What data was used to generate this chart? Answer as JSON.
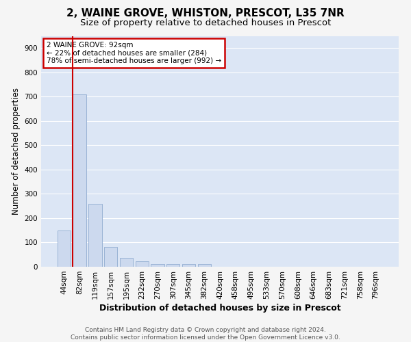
{
  "title": "2, WAINE GROVE, WHISTON, PRESCOT, L35 7NR",
  "subtitle": "Size of property relative to detached houses in Prescot",
  "xlabel": "Distribution of detached houses by size in Prescot",
  "ylabel": "Number of detached properties",
  "footer_line1": "Contains HM Land Registry data © Crown copyright and database right 2024.",
  "footer_line2": "Contains public sector information licensed under the Open Government Licence v3.0.",
  "bar_labels": [
    "44sqm",
    "82sqm",
    "119sqm",
    "157sqm",
    "195sqm",
    "232sqm",
    "270sqm",
    "307sqm",
    "345sqm",
    "382sqm",
    "420sqm",
    "458sqm",
    "495sqm",
    "533sqm",
    "570sqm",
    "608sqm",
    "646sqm",
    "683sqm",
    "721sqm",
    "758sqm",
    "796sqm"
  ],
  "bar_values": [
    148,
    710,
    260,
    83,
    36,
    22,
    11,
    11,
    11,
    12,
    0,
    0,
    0,
    0,
    0,
    0,
    0,
    0,
    0,
    0,
    0
  ],
  "bar_color": "#ccd9ee",
  "bar_edge_color": "#9ab3d5",
  "highlight_color": "#cc0000",
  "highlight_bar_index": 1,
  "ylim": [
    0,
    950
  ],
  "yticks": [
    0,
    100,
    200,
    300,
    400,
    500,
    600,
    700,
    800,
    900
  ],
  "annotation_text": "2 WAINE GROVE: 92sqm\n← 22% of detached houses are smaller (284)\n78% of semi-detached houses are larger (992) →",
  "annotation_box_color": "#cc0000",
  "fig_bg_color": "#f5f5f5",
  "plot_bg_color": "#dce6f5",
  "grid_color": "#ffffff",
  "title_fontsize": 11,
  "subtitle_fontsize": 9.5,
  "xlabel_fontsize": 9,
  "ylabel_fontsize": 8.5,
  "tick_fontsize": 7.5,
  "footer_fontsize": 6.5,
  "annot_fontsize": 7.5
}
